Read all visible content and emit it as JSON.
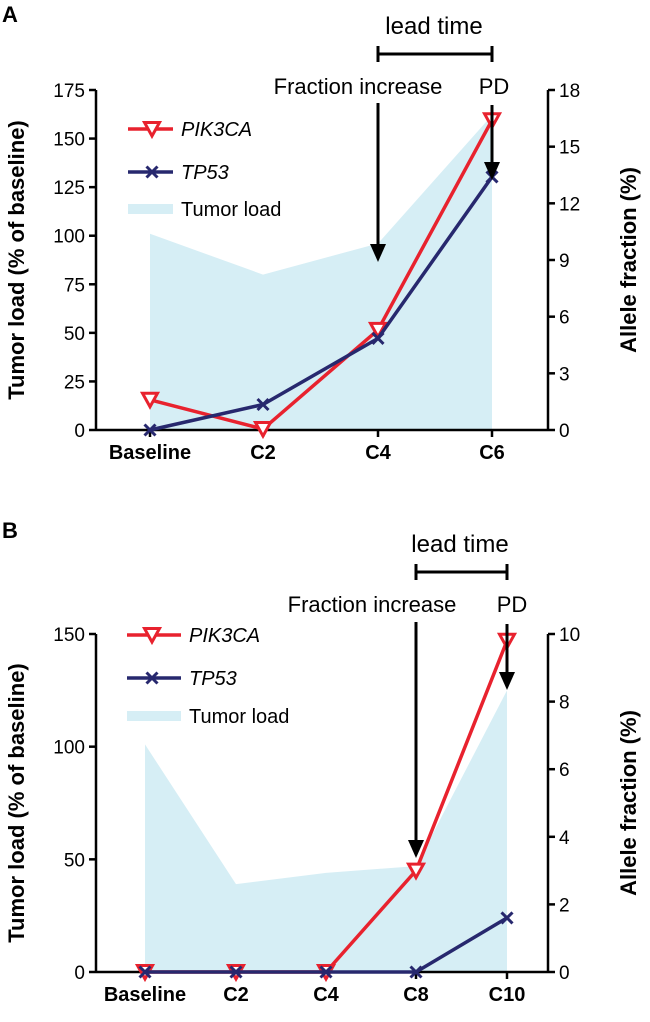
{
  "colors": {
    "pik3ca": "#e8222e",
    "tp53": "#27286e",
    "tumor": "#d6eef5",
    "axis": "#000000"
  },
  "chart_data": [
    {
      "panel": "A",
      "type": "line",
      "categories": [
        "Baseline",
        "C2",
        "C4",
        "C6"
      ],
      "ylabel": "Tumor load (% of baseline)",
      "y2label": "Allele fraction (%)",
      "ylim": [
        0,
        175
      ],
      "yticks": [
        0,
        25,
        50,
        75,
        100,
        125,
        150,
        175
      ],
      "y2lim": [
        0,
        18
      ],
      "y2ticks": [
        0,
        3,
        6,
        9,
        12,
        15,
        18
      ],
      "tumor_load": {
        "name": "Tumor load",
        "values": [
          101,
          80,
          96,
          162
        ]
      },
      "series": [
        {
          "name": "PIK3CA",
          "axis": "right",
          "marker": "triangle-down",
          "values": [
            1.6,
            0.05,
            5.3,
            16.4
          ]
        },
        {
          "name": "TP53",
          "axis": "right",
          "marker": "x",
          "values": [
            0,
            1.35,
            4.85,
            13.4
          ]
        }
      ],
      "annotations": {
        "lead_time": "lead time",
        "fraction_increase": "Fraction increase",
        "pd": "PD",
        "fraction_increase_at": "C4",
        "pd_at": "C6"
      }
    },
    {
      "panel": "B",
      "type": "line",
      "categories": [
        "Baseline",
        "C2",
        "C4",
        "C8",
        "C10"
      ],
      "ylabel": "Tumor load (% of baseline)",
      "y2label": "Allele fraction (%)",
      "ylim": [
        0,
        150
      ],
      "yticks": [
        0,
        50,
        100,
        150
      ],
      "y2lim": [
        0,
        10
      ],
      "y2ticks": [
        0,
        2,
        4,
        6,
        8,
        10
      ],
      "tumor_load": {
        "name": "Tumor load",
        "values": [
          101,
          39,
          44,
          47,
          125
        ]
      },
      "series": [
        {
          "name": "PIK3CA",
          "axis": "right",
          "marker": "triangle-down",
          "values": [
            0,
            0,
            0,
            3.0,
            9.8
          ]
        },
        {
          "name": "TP53",
          "axis": "right",
          "marker": "x",
          "values": [
            0,
            0,
            0,
            0,
            1.6
          ]
        }
      ],
      "annotations": {
        "lead_time": "lead time",
        "fraction_increase": "Fraction increase",
        "pd": "PD",
        "fraction_increase_at": "C8",
        "pd_at": "C10"
      }
    }
  ]
}
